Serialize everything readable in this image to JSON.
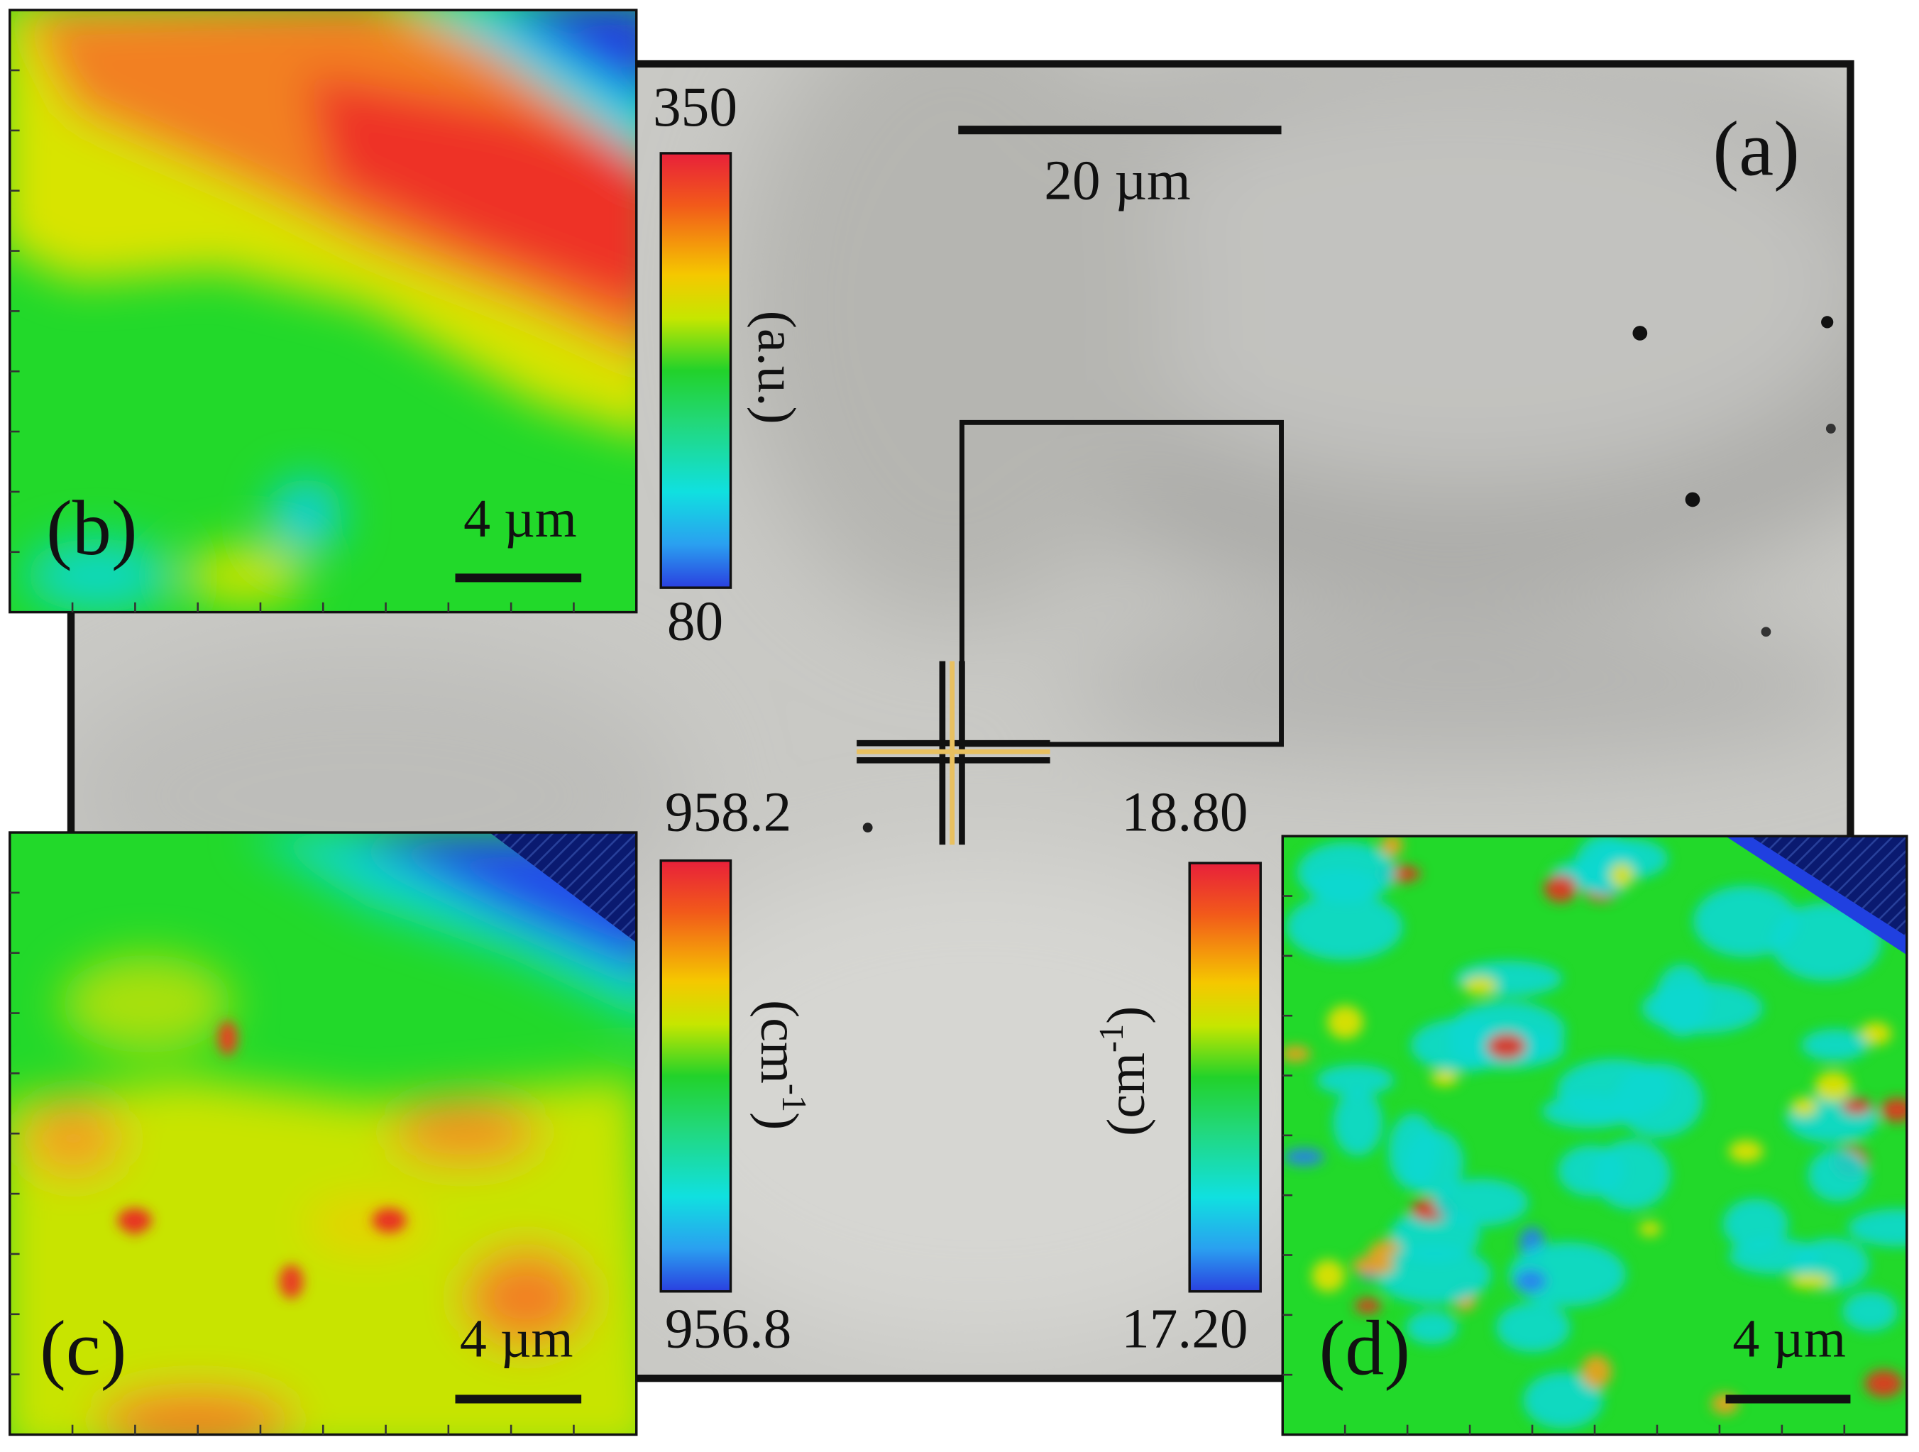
{
  "panels": [
    {
      "label": "(a)",
      "scale_bar": "20 µm"
    },
    {
      "label": "(b)",
      "scale_bar": "4 µm",
      "colorbar": {
        "max": "350",
        "min": "80",
        "unit": [
          "(a.u.)"
        ]
      }
    },
    {
      "label": "(c)",
      "scale_bar": "4 µm",
      "colorbar": {
        "max": "958.2",
        "min": "956.8",
        "unit": [
          "(cm",
          "-1",
          ")"
        ]
      }
    },
    {
      "label": "(d)",
      "scale_bar": "4 µm",
      "colorbar": {
        "max": "18.80",
        "min": "17.20",
        "unit": [
          "(cm",
          "-1",
          ")"
        ]
      }
    }
  ]
}
